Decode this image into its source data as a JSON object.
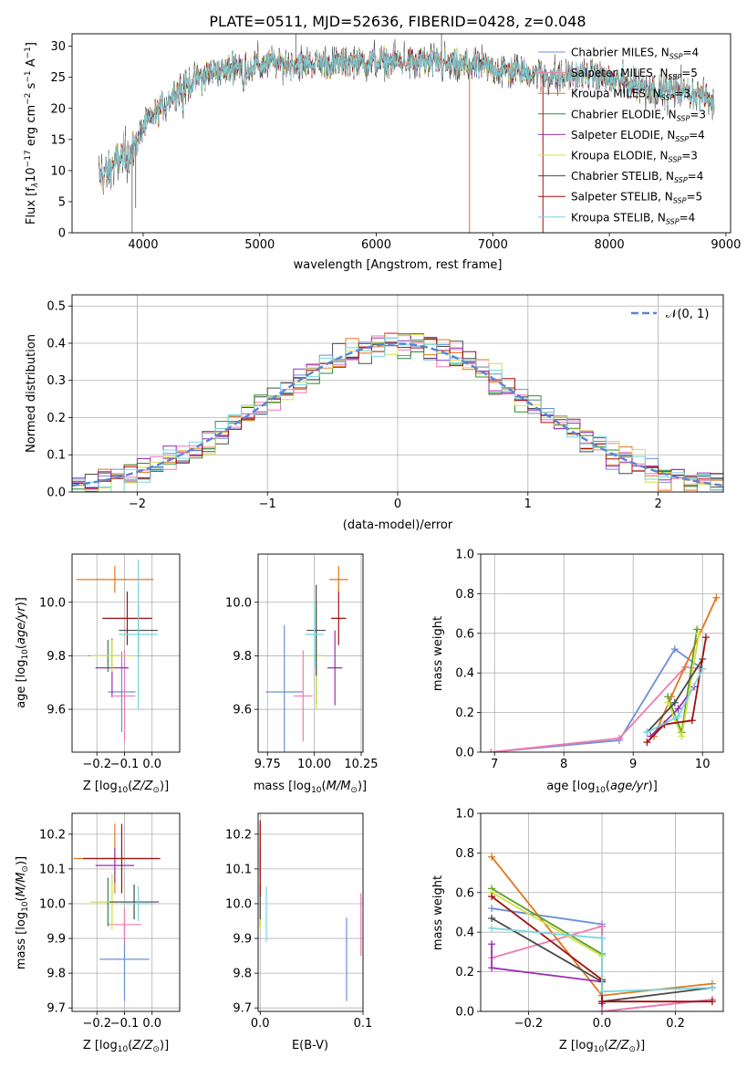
{
  "figure": {
    "title": "PLATE=0511, MJD=52636, FIBERID=0428, z=0.048"
  },
  "colors": {
    "models": [
      "#6b90d8",
      "#f07ab0",
      "#e0761a",
      "#2e8b2e",
      "#9a2fb0",
      "#d2e047",
      "#4a4a4a",
      "#a40f0f",
      "#78d6e0"
    ],
    "gaussian": "#5b84d6",
    "grid": "#b0b0b0",
    "weight_lines": [
      "#6b90d8",
      "#f07ab0",
      "#e0761a",
      "#5f9d28",
      "#9a2fb0",
      "#d2e047",
      "#4a4a4a",
      "#a40f0f",
      "#78d6e0"
    ]
  },
  "chart_data": [
    {
      "type": "line",
      "panel": "spectrum",
      "title": "PLATE=0511, MJD=52636, FIBERID=0428, z=0.048",
      "xlabel": "wavelength [Angstrom, rest frame]",
      "ylabel": "Flux [f_λ10^-17 erg cm^-2 s^-1 A^-1]",
      "xlim": [
        3390,
        9040
      ],
      "ylim": [
        0,
        32
      ],
      "xticks": [
        "4000",
        "5000",
        "6000",
        "7000",
        "8000",
        "9000"
      ],
      "yticks": [
        "0",
        "5",
        "10",
        "15",
        "20",
        "25",
        "30"
      ],
      "legend_position": "top-right",
      "legend": [
        {
          "model": "Chabrier MILES",
          "n": "4"
        },
        {
          "model": "Salpeter MILES",
          "n": "5"
        },
        {
          "model": "Kroupa MILES",
          "n": "3"
        },
        {
          "model": "Chabrier ELODIE",
          "n": "3"
        },
        {
          "model": "Salpeter ELODIE",
          "n": "4"
        },
        {
          "model": "Kroupa ELODIE",
          "n": "3"
        },
        {
          "model": "Chabrier STELIB",
          "n": "4"
        },
        {
          "model": "Salpeter STELIB",
          "n": "5"
        },
        {
          "model": "Kroupa STELIB",
          "n": "4"
        }
      ],
      "legend_nssp_label": "N",
      "legend_nssp_sub": "SSP",
      "continuum": [
        [
          3620,
          9
        ],
        [
          3700,
          10
        ],
        [
          3800,
          12
        ],
        [
          3900,
          13
        ],
        [
          3950,
          15
        ],
        [
          4000,
          17
        ],
        [
          4100,
          19
        ],
        [
          4200,
          21
        ],
        [
          4300,
          23
        ],
        [
          4400,
          24
        ],
        [
          4500,
          25
        ],
        [
          4600,
          26
        ],
        [
          4700,
          26
        ],
        [
          4800,
          27
        ],
        [
          4900,
          26.5
        ],
        [
          5000,
          27
        ],
        [
          5100,
          27.5
        ],
        [
          5200,
          27
        ],
        [
          5300,
          27.5
        ],
        [
          5400,
          27
        ],
        [
          5500,
          27.5
        ],
        [
          5600,
          27
        ],
        [
          5800,
          27.5
        ],
        [
          6000,
          27.5
        ],
        [
          6200,
          27.5
        ],
        [
          6400,
          27.5
        ],
        [
          6600,
          27
        ],
        [
          6800,
          27
        ],
        [
          7000,
          26.5
        ],
        [
          7200,
          26
        ],
        [
          7400,
          25.5
        ],
        [
          7600,
          25
        ],
        [
          7800,
          25.5
        ],
        [
          8000,
          24.5
        ],
        [
          8200,
          24
        ],
        [
          8400,
          23
        ],
        [
          8600,
          23
        ],
        [
          8800,
          22
        ],
        [
          8900,
          21
        ]
      ],
      "spikes": [
        [
          3905,
          0
        ],
        [
          3935,
          4
        ],
        [
          5310,
          32
        ],
        [
          6560,
          32
        ],
        [
          6800,
          0
        ],
        [
          7430,
          0
        ]
      ]
    },
    {
      "type": "bar",
      "panel": "residual_histogram",
      "xlabel": "(data-model)/error",
      "ylabel": "Normed distribution",
      "xlim": [
        -2.5,
        2.5
      ],
      "ylim": [
        0,
        0.53
      ],
      "xticks": [
        "−2",
        "−1",
        "0",
        "1",
        "2"
      ],
      "yticks": [
        "0.0",
        "0.1",
        "0.2",
        "0.3",
        "0.4",
        "0.5"
      ],
      "legend": "𝒩(0, 1)",
      "legend_position": "top-right",
      "bin_width": 0.1,
      "bin_start": -2.5,
      "grid": true
    },
    {
      "type": "scatter",
      "panel": "age_vs_Z",
      "xlabel": "Z [log10(Z/Z☉)]",
      "ylabel": "age [log10(age/yr)]",
      "xlim": [
        -0.29,
        0.1
      ],
      "ylim": [
        9.44,
        10.18
      ],
      "xticks": [
        "−0.2",
        "−0.1",
        "0.0"
      ],
      "yticks": [
        "9.6",
        "9.8",
        "10.0"
      ],
      "points": [
        {
          "x": -0.11,
          "y": 9.665,
          "xerr": 0.05,
          "yerr": 0.15
        },
        {
          "x": -0.1,
          "y": 9.65,
          "xerr": 0.04,
          "yerr": 0.17
        },
        {
          "x": -0.135,
          "y": 10.085,
          "xerr": 0.14,
          "yerr": 0.05
        },
        {
          "x": -0.16,
          "y": 9.8,
          "xerr": 0.07,
          "yerr": 0.06
        },
        {
          "x": -0.145,
          "y": 9.755,
          "xerr": 0.06,
          "yerr": 0.11
        },
        {
          "x": -0.145,
          "y": 9.8,
          "xerr": 0.08,
          "yerr": 0.06
        },
        {
          "x": -0.05,
          "y": 9.895,
          "xerr": 0.07,
          "yerr": 0.1
        },
        {
          "x": -0.09,
          "y": 9.94,
          "xerr": 0.09,
          "yerr": 0.1
        },
        {
          "x": -0.05,
          "y": 9.88,
          "xerr": 0.07,
          "yerr": 0.28
        }
      ]
    },
    {
      "type": "scatter",
      "panel": "age_vs_mass",
      "xlabel": "mass [log10(M/M☉)]",
      "ylabel": "",
      "xlim": [
        9.7,
        10.26
      ],
      "ylim": [
        9.44,
        10.18
      ],
      "xticks": [
        "9.75",
        "10.00",
        "10.25"
      ],
      "yticks": [
        "9.6",
        "9.8",
        "10.0"
      ],
      "points": [
        {
          "x": 9.84,
          "y": 9.665,
          "xerr": 0.1,
          "yerr": 0.25
        },
        {
          "x": 9.94,
          "y": 9.65,
          "xerr": 0.05,
          "yerr": 0.17
        },
        {
          "x": 10.13,
          "y": 10.085,
          "xerr": 0.05,
          "yerr": 0.05
        },
        {
          "x": 10.01,
          "y": 9.8,
          "xerr": 0.04,
          "yerr": 0.18
        },
        {
          "x": 10.11,
          "y": 9.755,
          "xerr": 0.04,
          "yerr": 0.14
        },
        {
          "x": 10.01,
          "y": 9.8,
          "xerr": 0.04,
          "yerr": 0.2
        },
        {
          "x": 10.01,
          "y": 9.895,
          "xerr": 0.05,
          "yerr": 0.17
        },
        {
          "x": 10.13,
          "y": 9.94,
          "xerr": 0.04,
          "yerr": 0.1
        },
        {
          "x": 10.0,
          "y": 9.88,
          "xerr": 0.05,
          "yerr": 0.12
        }
      ]
    },
    {
      "type": "line",
      "panel": "weight_vs_age",
      "xlabel": "age [log10(age/yr)]",
      "ylabel": "mass weight",
      "xlim": [
        6.8,
        10.3
      ],
      "ylim": [
        0,
        1.0
      ],
      "xticks": [
        "7",
        "8",
        "9",
        "10"
      ],
      "yticks": [
        "0.0",
        "0.2",
        "0.4",
        "0.6",
        "0.8",
        "1.0"
      ],
      "series": [
        {
          "points": [
            [
              6.95,
              0.0
            ],
            [
              8.8,
              0.06
            ],
            [
              9.6,
              0.52
            ],
            [
              10.0,
              0.42
            ]
          ]
        },
        {
          "points": [
            [
              6.95,
              0.0
            ],
            [
              8.8,
              0.07
            ],
            [
              9.75,
              0.43
            ],
            [
              10.0,
              0.42
            ]
          ]
        },
        {
          "points": [
            [
              9.3,
              0.08
            ],
            [
              9.55,
              0.28
            ],
            [
              10.2,
              0.78
            ]
          ]
        },
        {
          "points": [
            [
              9.5,
              0.28
            ],
            [
              9.7,
              0.1
            ],
            [
              9.92,
              0.62
            ]
          ]
        },
        {
          "points": [
            [
              9.25,
              0.08
            ],
            [
              9.65,
              0.22
            ],
            [
              9.88,
              0.33
            ]
          ]
        },
        {
          "points": [
            [
              9.5,
              0.25
            ],
            [
              9.7,
              0.08
            ],
            [
              9.95,
              0.6
            ]
          ]
        },
        {
          "points": [
            [
              9.2,
              0.1
            ],
            [
              9.6,
              0.25
            ],
            [
              10.0,
              0.47
            ]
          ]
        },
        {
          "points": [
            [
              9.2,
              0.05
            ],
            [
              9.45,
              0.14
            ],
            [
              9.85,
              0.16
            ],
            [
              10.05,
              0.58
            ]
          ]
        },
        {
          "points": [
            [
              9.2,
              0.1
            ],
            [
              9.65,
              0.18
            ],
            [
              10.0,
              0.42
            ]
          ]
        }
      ]
    },
    {
      "type": "scatter",
      "panel": "mass_vs_Z",
      "xlabel": "Z [log10(Z/Z☉)]",
      "ylabel": "mass [log10(M/M☉)]",
      "xlim": [
        -0.29,
        0.1
      ],
      "ylim": [
        9.69,
        10.26
      ],
      "xticks": [
        "−0.2",
        "−0.1",
        "0.0"
      ],
      "yticks": [
        "9.7",
        "9.8",
        "9.9",
        "10.0",
        "10.1",
        "10.2"
      ],
      "points": [
        {
          "x": -0.1,
          "y": 9.84,
          "xerr": 0.09,
          "yerr": 0.12
        },
        {
          "x": -0.1,
          "y": 9.94,
          "xerr": 0.06,
          "yerr": 0.05
        },
        {
          "x": -0.135,
          "y": 10.13,
          "xerr": 0.15,
          "yerr": 0.1
        },
        {
          "x": -0.16,
          "y": 10.005,
          "xerr": 0.05,
          "yerr": 0.07
        },
        {
          "x": -0.135,
          "y": 10.11,
          "xerr": 0.07,
          "yerr": 0.05
        },
        {
          "x": -0.145,
          "y": 10.005,
          "xerr": 0.08,
          "yerr": 0.08
        },
        {
          "x": -0.065,
          "y": 10.005,
          "xerr": 0.09,
          "yerr": 0.05
        },
        {
          "x": -0.11,
          "y": 10.13,
          "xerr": 0.14,
          "yerr": 0.1
        },
        {
          "x": -0.05,
          "y": 10.0,
          "xerr": 0.06,
          "yerr": 0.05
        }
      ]
    },
    {
      "type": "scatter",
      "panel": "mass_vs_EBV",
      "xlabel": "E(B-V)",
      "ylabel": "",
      "xlim": [
        -0.002,
        0.1
      ],
      "ylim": [
        9.69,
        10.26
      ],
      "xticks": [
        "0.0",
        "0.1"
      ],
      "yticks": [
        "9.7",
        "9.8",
        "9.9",
        "10.0",
        "10.1",
        "10.2"
      ],
      "points": [
        {
          "x": 0.084,
          "y": 9.84,
          "xerr": 0.0,
          "yerr": 0.12
        },
        {
          "x": 0.098,
          "y": 9.94,
          "xerr": 0.0,
          "yerr": 0.09
        },
        {
          "x": 0.0,
          "y": 10.13,
          "xerr": 0.0,
          "yerr": 0.1
        },
        {
          "x": 0.0,
          "y": 10.005,
          "xerr": 0.0,
          "yerr": 0.07
        },
        {
          "x": 0.0,
          "y": 10.11,
          "xerr": 0.0,
          "yerr": 0.05
        },
        {
          "x": 0.0,
          "y": 10.005,
          "xerr": 0.0,
          "yerr": 0.08
        },
        {
          "x": 0.0,
          "y": 10.005,
          "xerr": 0.0,
          "yerr": 0.05
        },
        {
          "x": 0.0,
          "y": 10.13,
          "xerr": 0.0,
          "yerr": 0.11
        },
        {
          "x": 0.006,
          "y": 9.97,
          "xerr": 0.0,
          "yerr": 0.08
        }
      ]
    },
    {
      "type": "line",
      "panel": "weight_vs_Z",
      "xlabel": "Z [log10(Z/Z☉)]",
      "ylabel": "mass weight",
      "xlim": [
        -0.33,
        0.33
      ],
      "ylim": [
        0,
        1.0
      ],
      "xticks": [
        "−0.2",
        "0.0",
        "0.2"
      ],
      "yticks": [
        "0.0",
        "0.2",
        "0.4",
        "0.6",
        "0.8",
        "1.0"
      ],
      "series": [
        {
          "points": [
            [
              -0.3,
              0.52
            ],
            [
              0.0,
              0.44
            ],
            [
              0.0,
              0.0
            ],
            [
              0.3,
              0.06
            ]
          ]
        },
        {
          "points": [
            [
              -0.3,
              0.27
            ],
            [
              0.0,
              0.43
            ],
            [
              0.0,
              0.0
            ],
            [
              0.3,
              0.06
            ]
          ]
        },
        {
          "points": [
            [
              -0.3,
              0.78
            ],
            [
              0.0,
              0.08
            ],
            [
              0.3,
              0.14
            ]
          ]
        },
        {
          "points": [
            [
              -0.3,
              0.62
            ],
            [
              0.0,
              0.29
            ],
            [
              0.0,
              0.1
            ]
          ]
        },
        {
          "points": [
            [
              -0.3,
              0.34
            ],
            [
              -0.3,
              0.22
            ],
            [
              0.0,
              0.15
            ],
            [
              0.0,
              0.04
            ]
          ]
        },
        {
          "points": [
            [
              -0.3,
              0.6
            ],
            [
              0.0,
              0.28
            ],
            [
              0.0,
              0.1
            ]
          ]
        },
        {
          "points": [
            [
              -0.3,
              0.47
            ],
            [
              0.0,
              0.15
            ],
            [
              0.0,
              0.05
            ],
            [
              0.3,
              0.12
            ]
          ]
        },
        {
          "points": [
            [
              -0.3,
              0.58
            ],
            [
              0.0,
              0.16
            ],
            [
              0.0,
              0.05
            ],
            [
              0.3,
              0.05
            ]
          ]
        },
        {
          "points": [
            [
              -0.3,
              0.42
            ],
            [
              0.0,
              0.37
            ],
            [
              0.0,
              0.1
            ],
            [
              0.3,
              0.12
            ]
          ]
        }
      ]
    }
  ]
}
